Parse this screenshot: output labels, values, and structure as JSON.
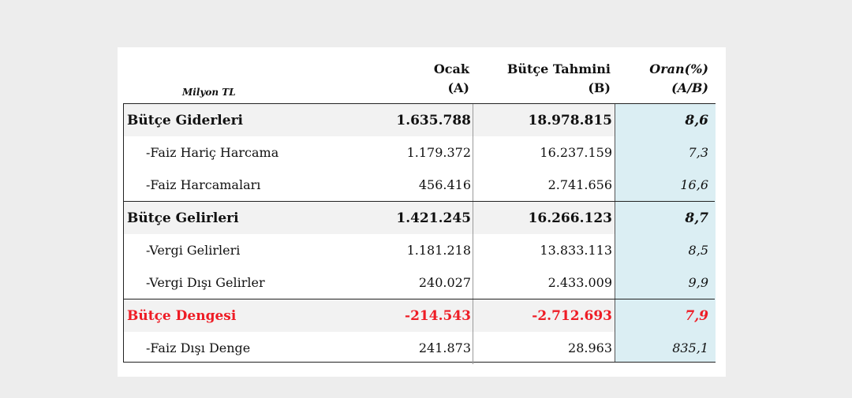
{
  "header": {
    "unit": "Milyon TL",
    "col_a_line1": "Ocak",
    "col_a_line2": "(A)",
    "col_b_line1": "Bütçe Tahmini",
    "col_b_line2": "(B)",
    "col_r_line1": "Oran(%)",
    "col_r_line2": "(A/B)"
  },
  "rows": [
    {
      "label": "Bütçe Giderleri",
      "a": "1.635.788",
      "b": "18.978.815",
      "ratio": "8,6"
    },
    {
      "label": "-Faiz Hariç Harcama",
      "a": "1.179.372",
      "b": "16.237.159",
      "ratio": "7,3"
    },
    {
      "label": "-Faiz Harcamaları",
      "a": "456.416",
      "b": "2.741.656",
      "ratio": "16,6"
    },
    {
      "label": "Bütçe Gelirleri",
      "a": "1.421.245",
      "b": "16.266.123",
      "ratio": "8,7"
    },
    {
      "label": "-Vergi Gelirleri",
      "a": "1.181.218",
      "b": "13.833.113",
      "ratio": "8,5"
    },
    {
      "label": "-Vergi Dışı Gelirler",
      "a": "240.027",
      "b": "2.433.009",
      "ratio": "9,9"
    },
    {
      "label": "Bütçe Dengesi",
      "a": "-214.543",
      "b": "-2.712.693",
      "ratio": "7,9"
    },
    {
      "label": "-Faiz Dışı Denge",
      "a": "241.873",
      "b": "28.963",
      "ratio": "835,1"
    }
  ],
  "colors": {
    "page_bg": "#ededed",
    "ratio_column_bg": "#dbeef3",
    "shaded_row_bg": "#f2f2f2",
    "balance_text": "#ee1c25"
  }
}
